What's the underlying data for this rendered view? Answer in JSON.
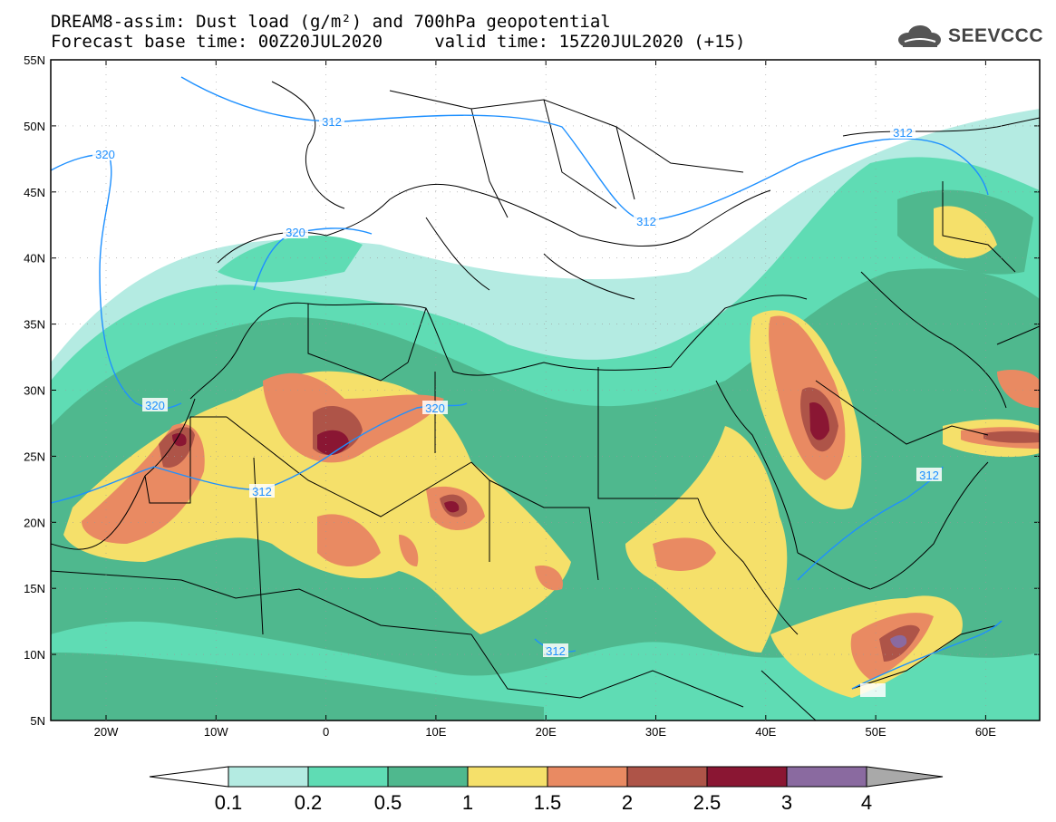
{
  "title_line1": "DREAM8-assim: Dust load (g/m²) and 700hPa geopotential",
  "title_line2": "Forecast base time: 00Z20JUL2020     valid time: 15Z20JUL2020 (+15)",
  "logo": {
    "icon": "cloud-logo-icon",
    "text": "SEEVCCC"
  },
  "axes": {
    "lat_labels": [
      "55N",
      "50N",
      "45N",
      "40N",
      "35N",
      "30N",
      "25N",
      "20N",
      "15N",
      "10N",
      "5N"
    ],
    "lon_labels": [
      "20W",
      "10W",
      "0",
      "10E",
      "20E",
      "30E",
      "40E",
      "50E",
      "60E"
    ]
  },
  "contour_labels": [
    "312",
    "320",
    "320",
    "320",
    "312",
    "312",
    "320",
    "312",
    "312",
    "312"
  ],
  "colorbar": {
    "labels": [
      "0.1",
      "0.2",
      "0.5",
      "1",
      "1.5",
      "2",
      "2.5",
      "3",
      "4"
    ],
    "colors": [
      "#ffffff",
      "#b4ebe2",
      "#5fdcb4",
      "#4fb88e",
      "#f5e06a",
      "#e98a62",
      "#ae5448",
      "#8a1633",
      "#8a6aa0",
      "#a9a9a9"
    ]
  },
  "palette": {
    "contour_line": "#1e90ff",
    "border": "#000000"
  }
}
